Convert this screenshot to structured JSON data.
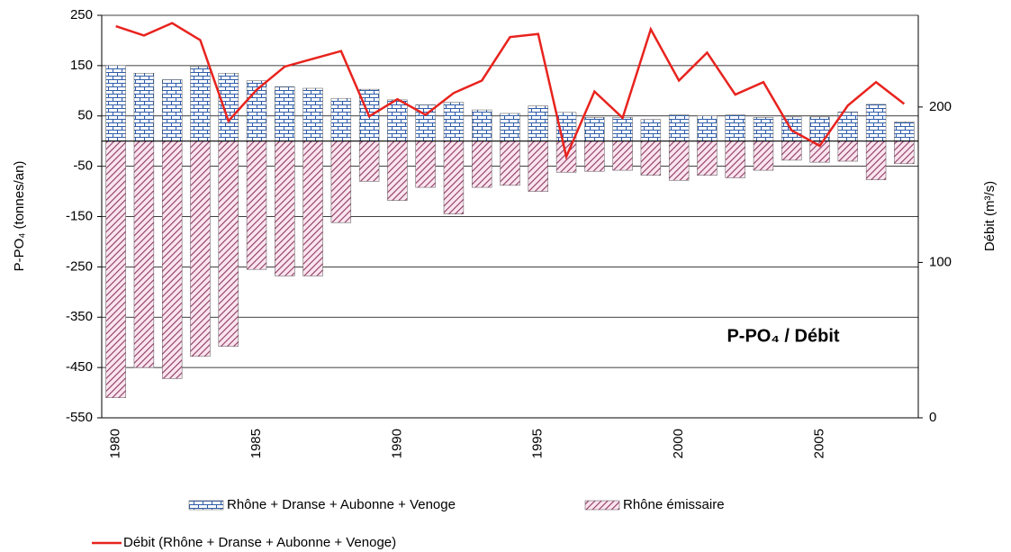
{
  "chart_data": {
    "type": "bar-line",
    "annotation": "P-PO₄ / Débit",
    "y_label": "P-PO₄ (tonnes/an)",
    "y2_label": "Débit (m³/s)",
    "categories": [
      "1980",
      null,
      null,
      null,
      null,
      "1985",
      null,
      null,
      null,
      null,
      "1990",
      null,
      null,
      null,
      null,
      "1995",
      null,
      null,
      null,
      null,
      "2000",
      null,
      null,
      null,
      null,
      "2005",
      null,
      null,
      null
    ],
    "ylim": [
      -550,
      250
    ],
    "yticks": [
      250,
      150,
      50,
      -50,
      -150,
      -250,
      -350,
      -450,
      -550
    ],
    "y2lim": [
      0,
      259
    ],
    "y2ticks": [
      0,
      100,
      200
    ],
    "grid": true,
    "series": [
      {
        "name": "Rhône + Dranse + Aubonne + Venoge",
        "color": "#2f5daa",
        "pattern": "brick",
        "values": [
          150,
          135,
          122,
          148,
          135,
          120,
          108,
          105,
          85,
          103,
          82,
          72,
          77,
          62,
          55,
          70,
          57,
          47,
          47,
          43,
          52,
          50,
          52,
          47,
          48,
          48,
          58,
          73,
          38
        ]
      },
      {
        "name": "Rhône émissaire",
        "color": "#8c3a64",
        "pattern": "hatch",
        "values": [
          -510,
          -450,
          -472,
          -428,
          -408,
          -255,
          -268,
          -268,
          -162,
          -80,
          -118,
          -92,
          -145,
          -92,
          -88,
          -100,
          -62,
          -60,
          -58,
          -68,
          -78,
          -68,
          -73,
          -58,
          -38,
          -42,
          -40,
          -77,
          -45
        ]
      },
      {
        "name": "Débit (Rhône + Dranse + Aubonne + Venoge)",
        "color": "#e8231e",
        "axis": "y2",
        "kind": "line",
        "values": [
          252,
          246,
          254,
          243,
          191,
          211,
          226,
          231,
          236,
          194,
          205,
          195,
          209,
          217,
          245,
          247,
          168,
          210,
          193,
          250,
          217,
          235,
          208,
          216,
          185,
          175,
          201,
          216,
          202
        ]
      }
    ]
  }
}
